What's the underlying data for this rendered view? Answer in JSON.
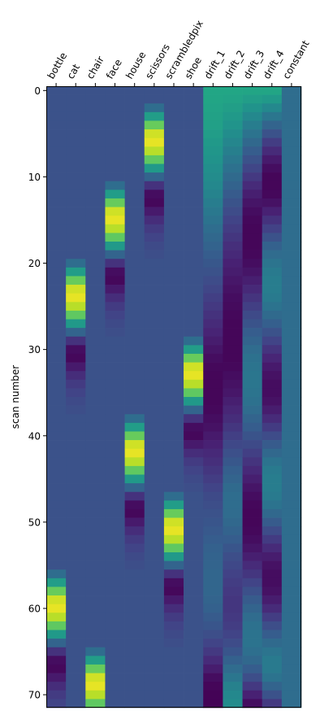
{
  "chart_data": {
    "type": "heatmap",
    "title": "",
    "xlabel": "",
    "ylabel": "scan number",
    "x_tick_position": "top",
    "x_tick_rotation_deg": 60,
    "columns": [
      "bottle",
      "cat",
      "chair",
      "face",
      "house",
      "scissors",
      "scrambledpix",
      "shoe",
      "drift_1",
      "drift_2",
      "drift_3",
      "drift_4",
      "constant"
    ],
    "n_scans": 72,
    "ylim": [
      71.5,
      -0.5
    ],
    "y_ticks": [
      0,
      10,
      20,
      30,
      40,
      50,
      60,
      70
    ],
    "colormap": "viridis",
    "vlim": [
      -0.35,
      1.05
    ],
    "grid": false,
    "background_value": 0,
    "hrf_profile": [
      0.15,
      0.42,
      0.72,
      0.95,
      1.0,
      0.9,
      0.7,
      0.4,
      0.1,
      -0.15,
      -0.3,
      -0.32,
      -0.25,
      -0.17,
      -0.11,
      -0.07,
      -0.04,
      -0.02
    ],
    "task_block_onsets": {
      "bottle": 56,
      "cat": 20,
      "chair": 65,
      "face": 11,
      "house": 38,
      "scissors": 2,
      "scrambledpix": 47,
      "shoe": 29
    },
    "drift_columns": {
      "drift_1": [
        0.48,
        0.47,
        0.46,
        0.45,
        0.44,
        0.42,
        0.4,
        0.38,
        0.36,
        0.34,
        0.32,
        0.3,
        0.27,
        0.24,
        0.21,
        0.18,
        0.15,
        0.12,
        0.09,
        0.06,
        0.03,
        0.0,
        -0.03,
        -0.06,
        -0.09,
        -0.12,
        -0.15,
        -0.18,
        -0.21,
        -0.24,
        -0.27,
        -0.3,
        -0.32,
        -0.33,
        -0.33,
        -0.33,
        -0.33,
        -0.32,
        -0.3,
        -0.28,
        -0.25,
        -0.22,
        -0.19,
        -0.16,
        -0.13,
        -0.1,
        -0.07,
        -0.04,
        -0.02,
        0.0,
        0.02,
        0.04,
        0.06,
        0.08,
        0.09,
        0.1,
        0.11,
        0.11,
        0.11,
        0.1,
        0.08,
        0.05,
        0.02,
        -0.02,
        -0.07,
        -0.12,
        -0.18,
        -0.24,
        -0.3,
        -0.33,
        -0.34,
        -0.34
      ],
      "drift_2": [
        0.48,
        0.46,
        0.43,
        0.4,
        0.37,
        0.33,
        0.29,
        0.25,
        0.21,
        0.17,
        0.13,
        0.09,
        0.05,
        0.01,
        -0.03,
        -0.07,
        -0.1,
        -0.13,
        -0.16,
        -0.19,
        -0.22,
        -0.24,
        -0.26,
        -0.28,
        -0.3,
        -0.31,
        -0.32,
        -0.33,
        -0.33,
        -0.33,
        -0.33,
        -0.33,
        -0.32,
        -0.3,
        -0.28,
        -0.26,
        -0.23,
        -0.2,
        -0.17,
        -0.13,
        -0.09,
        -0.05,
        -0.01,
        0.03,
        0.07,
        0.1,
        0.13,
        0.15,
        0.15,
        0.14,
        0.12,
        0.09,
        0.06,
        0.02,
        -0.02,
        -0.05,
        -0.08,
        -0.1,
        -0.12,
        -0.13,
        -0.13,
        -0.12,
        -0.1,
        -0.07,
        -0.03,
        0.02,
        0.08,
        0.14,
        0.2,
        0.26,
        0.3,
        0.32
      ],
      "drift_3": [
        0.47,
        0.42,
        0.36,
        0.3,
        0.24,
        0.18,
        0.12,
        0.06,
        0.0,
        -0.06,
        -0.12,
        -0.18,
        -0.23,
        -0.27,
        -0.3,
        -0.32,
        -0.33,
        -0.33,
        -0.33,
        -0.32,
        -0.3,
        -0.27,
        -0.23,
        -0.19,
        -0.14,
        -0.09,
        -0.04,
        0.01,
        0.06,
        0.1,
        0.14,
        0.17,
        0.19,
        0.2,
        0.2,
        0.19,
        0.17,
        0.14,
        0.1,
        0.06,
        0.01,
        -0.04,
        -0.09,
        -0.14,
        -0.19,
        -0.23,
        -0.27,
        -0.3,
        -0.32,
        -0.33,
        -0.33,
        -0.32,
        -0.3,
        -0.27,
        -0.23,
        -0.18,
        -0.13,
        -0.07,
        -0.01,
        0.05,
        0.1,
        0.14,
        0.17,
        0.18,
        0.18,
        0.16,
        0.12,
        0.06,
        -0.02,
        -0.12,
        -0.22,
        -0.3
      ],
      "drift_4": [
        0.47,
        0.4,
        0.3,
        0.2,
        0.1,
        0.0,
        -0.1,
        -0.18,
        -0.25,
        -0.3,
        -0.33,
        -0.33,
        -0.32,
        -0.28,
        -0.22,
        -0.15,
        -0.08,
        0.0,
        0.08,
        0.14,
        0.19,
        0.22,
        0.24,
        0.24,
        0.22,
        0.18,
        0.13,
        0.07,
        0.0,
        -0.07,
        -0.14,
        -0.2,
        -0.25,
        -0.28,
        -0.3,
        -0.3,
        -0.28,
        -0.24,
        -0.18,
        -0.11,
        -0.03,
        0.05,
        0.12,
        0.18,
        0.22,
        0.24,
        0.24,
        0.22,
        0.18,
        0.12,
        0.05,
        -0.03,
        -0.11,
        -0.18,
        -0.24,
        -0.28,
        -0.3,
        -0.3,
        -0.28,
        -0.24,
        -0.18,
        -0.1,
        -0.02,
        0.06,
        0.13,
        0.19,
        0.22,
        0.22,
        0.18,
        0.1,
        0.0,
        -0.12
      ],
      "constant": 0.15
    }
  }
}
